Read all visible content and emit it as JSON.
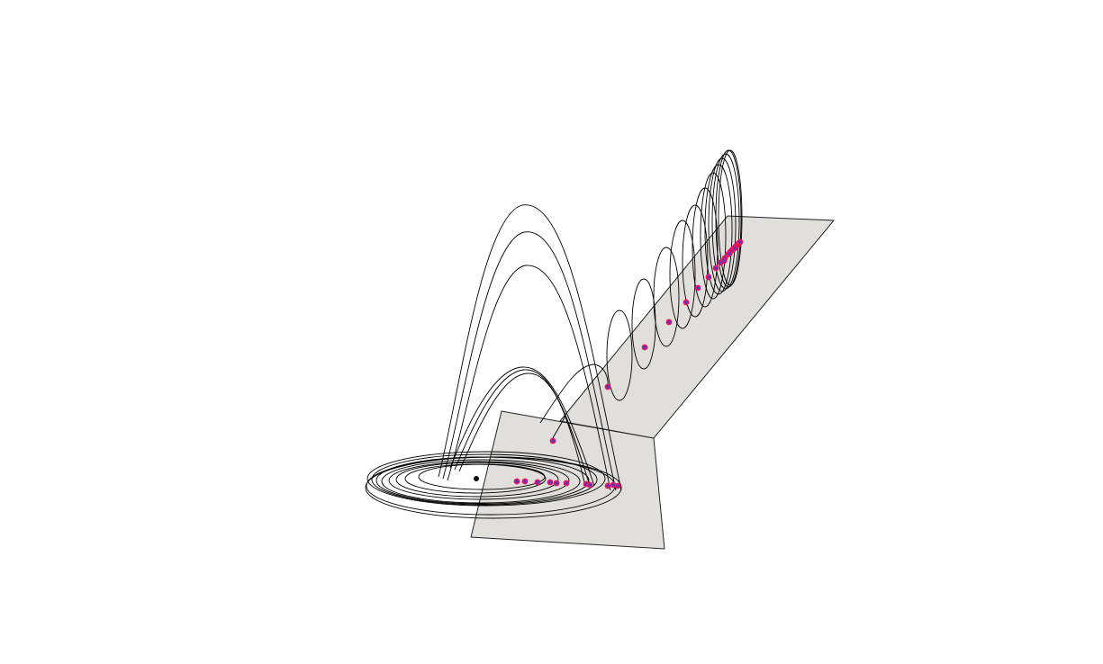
{
  "colors": {
    "background": "#ffffff",
    "plane_fill": "#e0dfdb",
    "plane_edge": "#222222",
    "trajectory": "#000000",
    "point_outer": "#e8155e",
    "point_inner": "#3d3dd6",
    "equilibrium": "#111111"
  },
  "figure": {
    "description_visible_text": "",
    "planes": [
      "section-plane-long",
      "section-plane-short"
    ],
    "crossing_points": {
      "long_plane_count": 22,
      "short_plane_count": 12
    }
  }
}
